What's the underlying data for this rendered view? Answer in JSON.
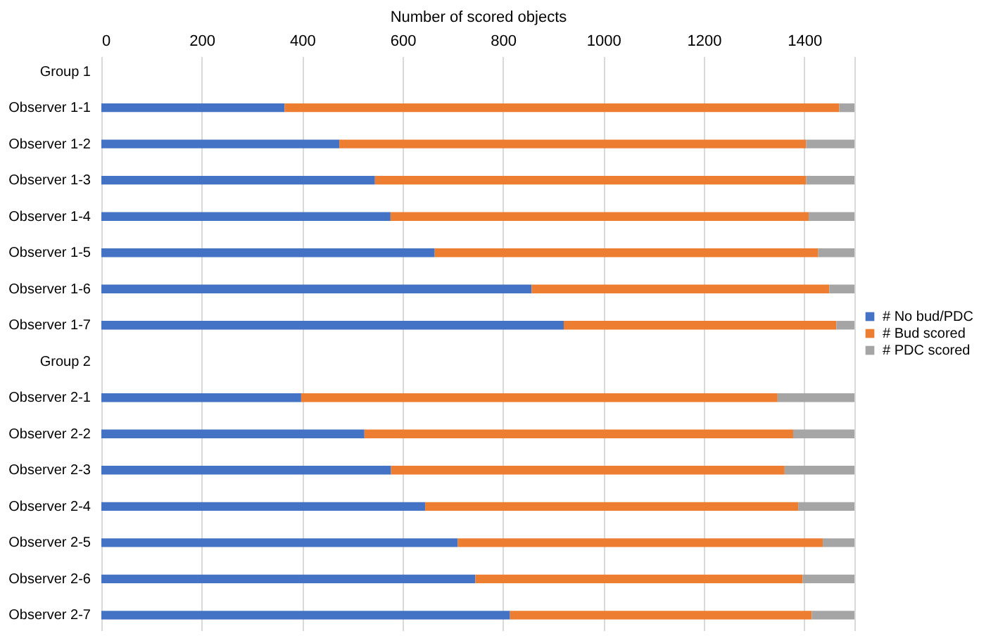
{
  "chart_data": {
    "type": "bar",
    "orientation": "horizontal",
    "stacked": true,
    "xlabel": "Number of scored objects",
    "categories": [
      "Group 1",
      "Observer 1-1",
      "Observer 1-2",
      "Observer 1-3",
      "Observer 1-4",
      "Observer 1-5",
      "Observer 1-6",
      "Observer 1-7",
      "Group 2",
      "Observer 2-1",
      "Observer 2-2",
      "Observer 2-3",
      "Observer 2-4",
      "Observer 2-5",
      "Observer 2-6",
      "Observer 2-7"
    ],
    "series": [
      {
        "name": "# No bud/PDC",
        "color": "#4472c4",
        "values": [
          null,
          365,
          474,
          545,
          576,
          664,
          857,
          921,
          null,
          398,
          524,
          577,
          645,
          710,
          745,
          814
        ]
      },
      {
        "name": "# Bud scored",
        "color": "#ed7d31",
        "values": [
          null,
          1105,
          930,
          859,
          833,
          764,
          593,
          543,
          null,
          949,
          854,
          784,
          743,
          727,
          652,
          601
        ]
      },
      {
        "name": "# PDC scored",
        "color": "#a5a5a5",
        "values": [
          null,
          30,
          96,
          96,
          91,
          72,
          50,
          36,
          null,
          153,
          122,
          139,
          112,
          63,
          103,
          85
        ]
      }
    ],
    "xlim": [
      0,
      1500
    ],
    "xticks": [
      0,
      200,
      400,
      600,
      800,
      1000,
      1200,
      1400,
      {
        "value": 1500,
        "label": null
      }
    ],
    "grid": "x",
    "legend": "right"
  }
}
